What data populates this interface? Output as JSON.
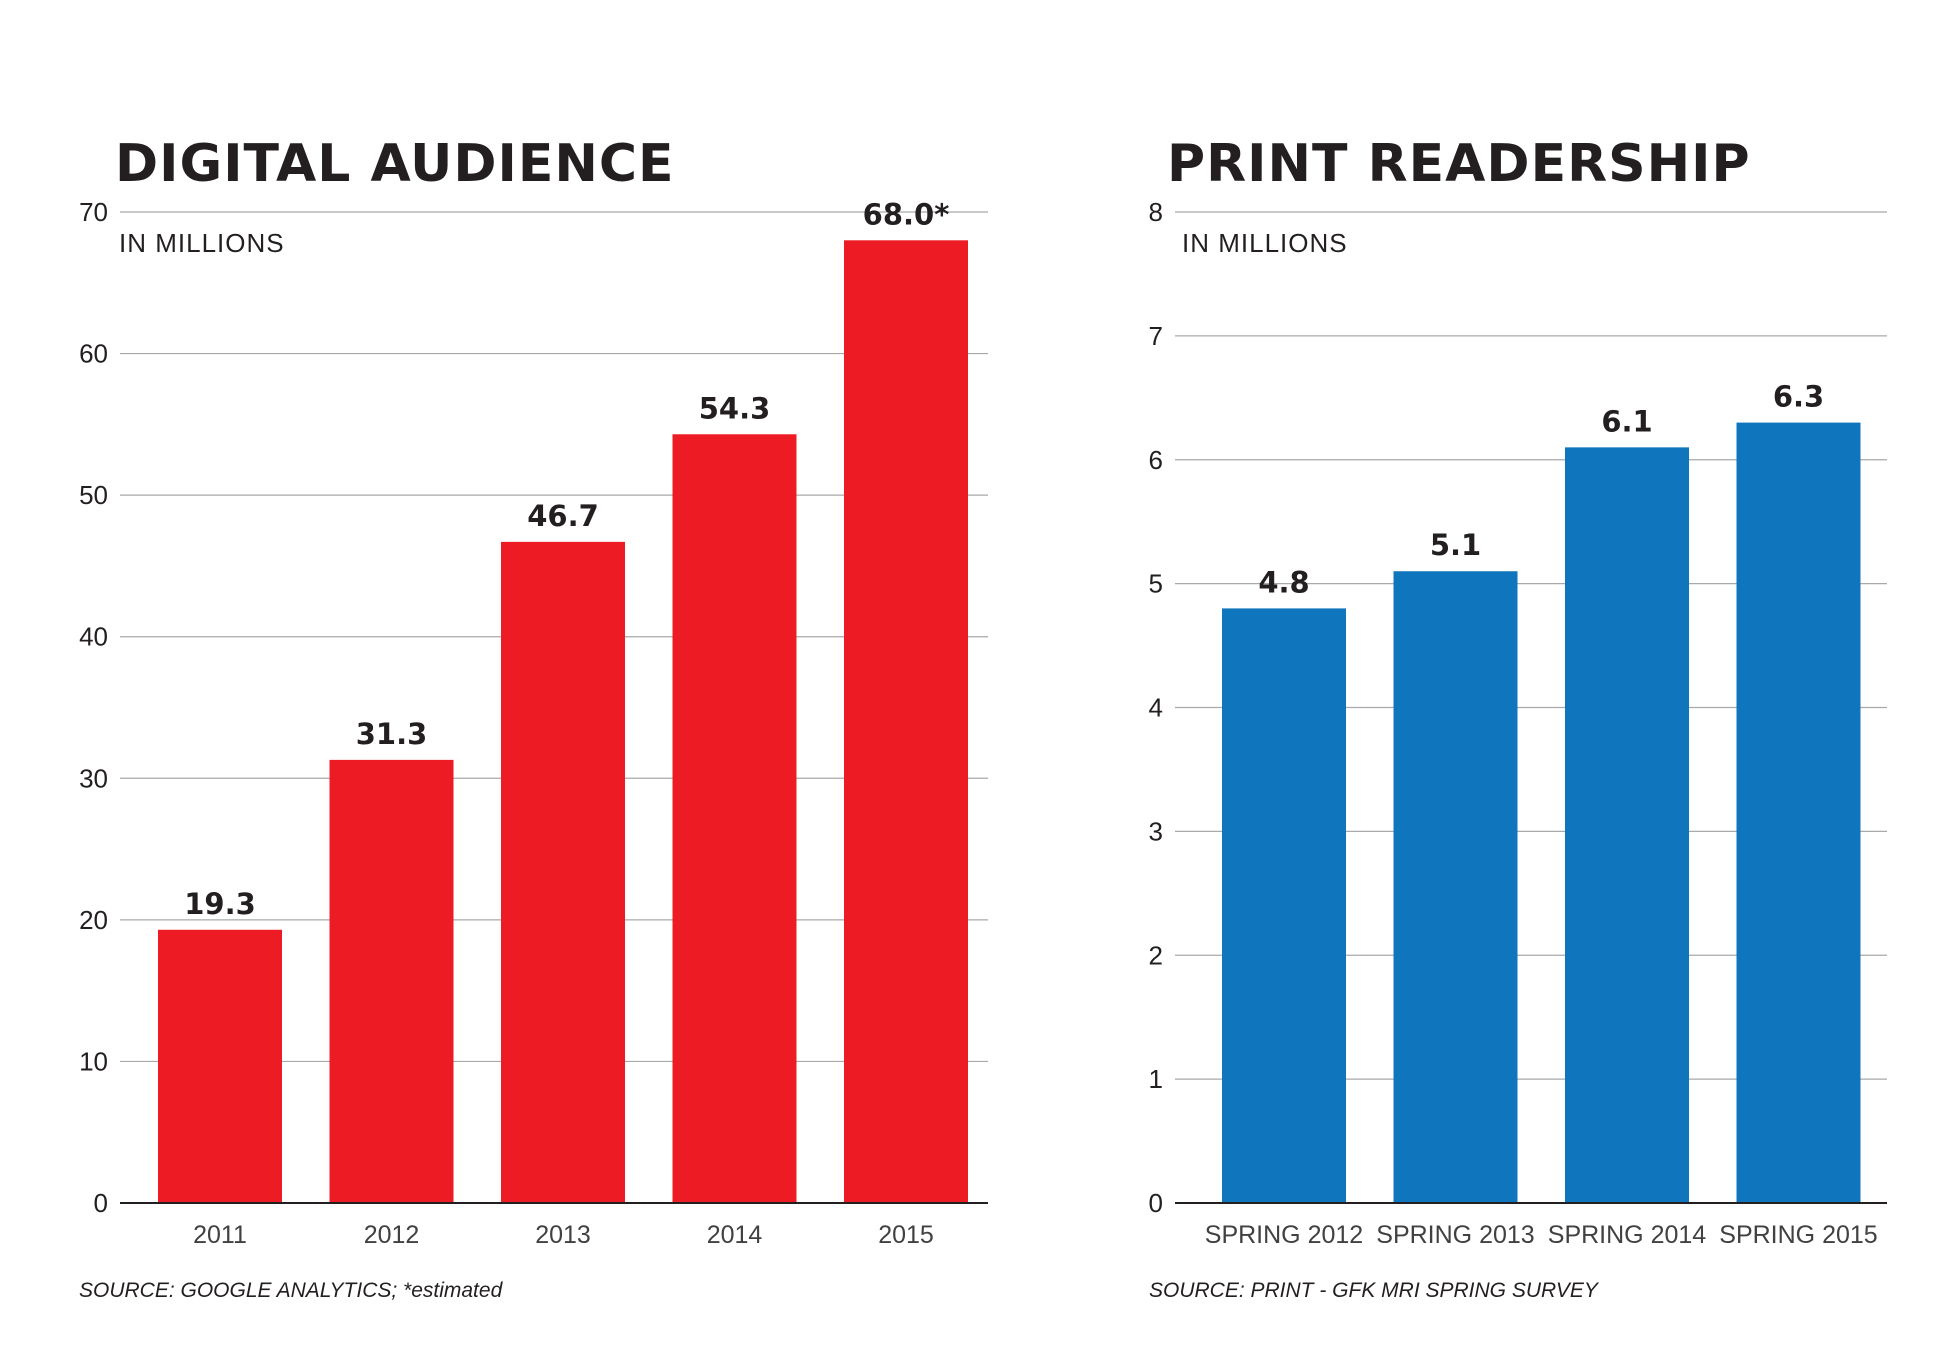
{
  "chart_data": [
    {
      "type": "bar",
      "title": "DIGITAL AUDIENCE",
      "subtitle": "IN MILLIONS",
      "xlabel": "",
      "ylabel": "",
      "categories": [
        "2011",
        "2012",
        "2013",
        "2014",
        "2015"
      ],
      "values": [
        19.3,
        31.3,
        46.7,
        54.3,
        68.0
      ],
      "data_labels": [
        "19.3",
        "31.3",
        "46.7",
        "54.3",
        "68.0*"
      ],
      "ylim": [
        0,
        70
      ],
      "yticks": [
        0,
        10,
        20,
        30,
        40,
        50,
        60,
        70
      ],
      "grid": true,
      "color": "#ed1c24",
      "source": "SOURCE: GOOGLE ANALYTICS; *estimated"
    },
    {
      "type": "bar",
      "title": "PRINT READERSHIP",
      "subtitle": "IN MILLIONS",
      "xlabel": "",
      "ylabel": "",
      "categories": [
        "SPRING 2012",
        "SPRING 2013",
        "SPRING 2014",
        "SPRING 2015"
      ],
      "values": [
        4.8,
        5.1,
        6.1,
        6.3
      ],
      "data_labels": [
        "4.8",
        "5.1",
        "6.1",
        "6.3"
      ],
      "ylim": [
        0,
        8
      ],
      "yticks": [
        0,
        1,
        2,
        3,
        4,
        5,
        6,
        7,
        8
      ],
      "grid": true,
      "color": "#0f75bc",
      "source": "SOURCE: PRINT - GFK MRI SPRING SURVEY"
    }
  ]
}
